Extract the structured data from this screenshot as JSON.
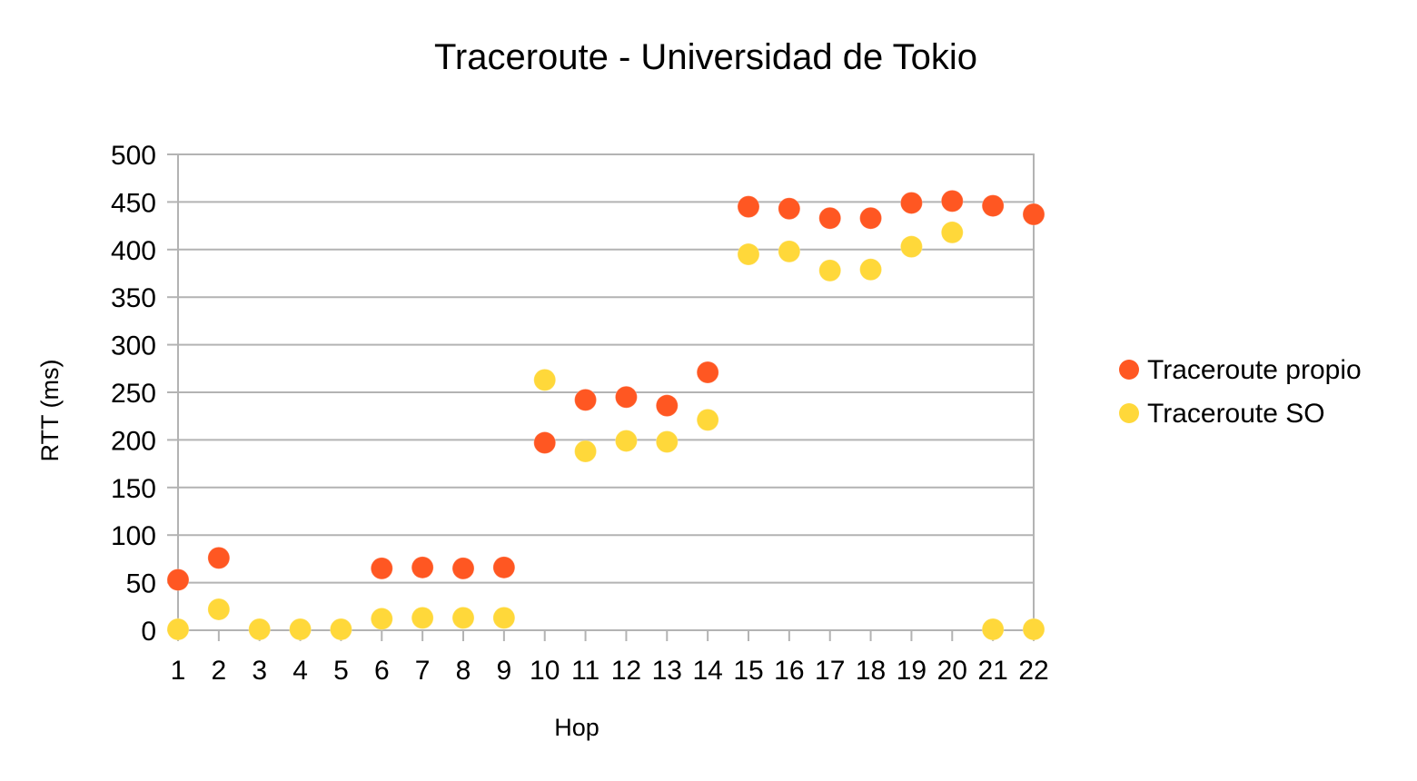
{
  "chart_data": {
    "type": "scatter",
    "title": "Traceroute - Universidad de Tokio",
    "xlabel": "Hop",
    "ylabel": "RTT (ms)",
    "ylim": [
      0,
      500
    ],
    "yticks": [
      0,
      50,
      100,
      150,
      200,
      250,
      300,
      350,
      400,
      450,
      500
    ],
    "categories": [
      "1",
      "2",
      "3",
      "4",
      "5",
      "6",
      "7",
      "8",
      "9",
      "10",
      "11",
      "12",
      "13",
      "14",
      "15",
      "16",
      "17",
      "18",
      "19",
      "20",
      "21",
      "22"
    ],
    "grid": true,
    "legend_position": "right",
    "series": [
      {
        "name": "Traceroute propio",
        "color": "#ff5722",
        "values": [
          53,
          76,
          null,
          null,
          null,
          65,
          66,
          65,
          66,
          197,
          242,
          245,
          236,
          271,
          445,
          443,
          433,
          433,
          449,
          451,
          446,
          437
        ]
      },
      {
        "name": "Traceroute SO",
        "color": "#ffd83a",
        "values": [
          1,
          22,
          1,
          1,
          1,
          12,
          13,
          13,
          13,
          263,
          188,
          199,
          198,
          221,
          395,
          398,
          378,
          379,
          403,
          418,
          1,
          1
        ]
      }
    ]
  }
}
